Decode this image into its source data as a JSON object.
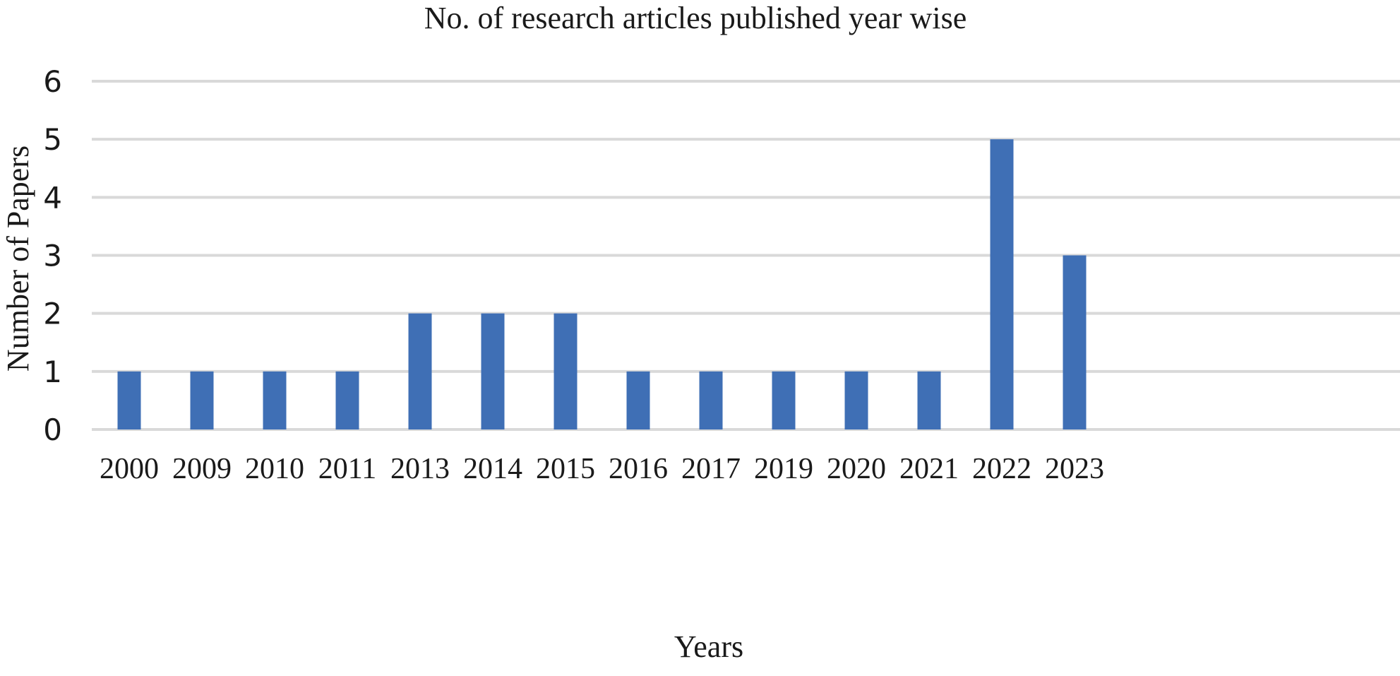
{
  "chart_data": {
    "type": "bar",
    "title": "No. of research articles published year wise",
    "xlabel": "Years",
    "ylabel": "Number of Papers",
    "categories": [
      "2000",
      "2009",
      "2010",
      "2011",
      "2013",
      "2014",
      "2015",
      "2016",
      "2017",
      "2019",
      "2020",
      "2021",
      "2022",
      "2023"
    ],
    "values": [
      1,
      1,
      1,
      1,
      2,
      2,
      2,
      1,
      1,
      1,
      1,
      1,
      5,
      3
    ],
    "ylim": [
      0,
      6
    ],
    "yticks": [
      "0",
      "1",
      "2",
      "3",
      "4",
      "5",
      "6"
    ],
    "grid": true,
    "legend": "none",
    "bar_color": "#3f6fb5"
  }
}
